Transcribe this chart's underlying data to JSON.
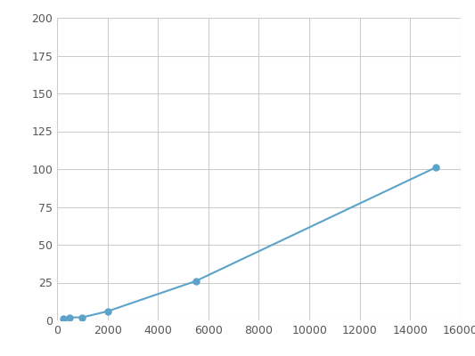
{
  "x": [
    250,
    500,
    1000,
    2000,
    5500,
    15000
  ],
  "y": [
    1,
    2,
    2,
    6,
    26,
    101
  ],
  "line_color": "#5ba3c9",
  "marker_color": "#5ba3c9",
  "marker_size": 5,
  "xlim": [
    0,
    16000
  ],
  "ylim": [
    0,
    200
  ],
  "xticks": [
    0,
    2000,
    4000,
    6000,
    8000,
    10000,
    12000,
    14000,
    16000
  ],
  "yticks": [
    0,
    25,
    50,
    75,
    100,
    125,
    150,
    175,
    200
  ],
  "grid": true,
  "background_color": "#ffffff",
  "linewidth": 1.5,
  "tick_fontsize": 9,
  "tick_color": "#555555",
  "grid_color": "#cccccc",
  "grid_linewidth": 0.8
}
